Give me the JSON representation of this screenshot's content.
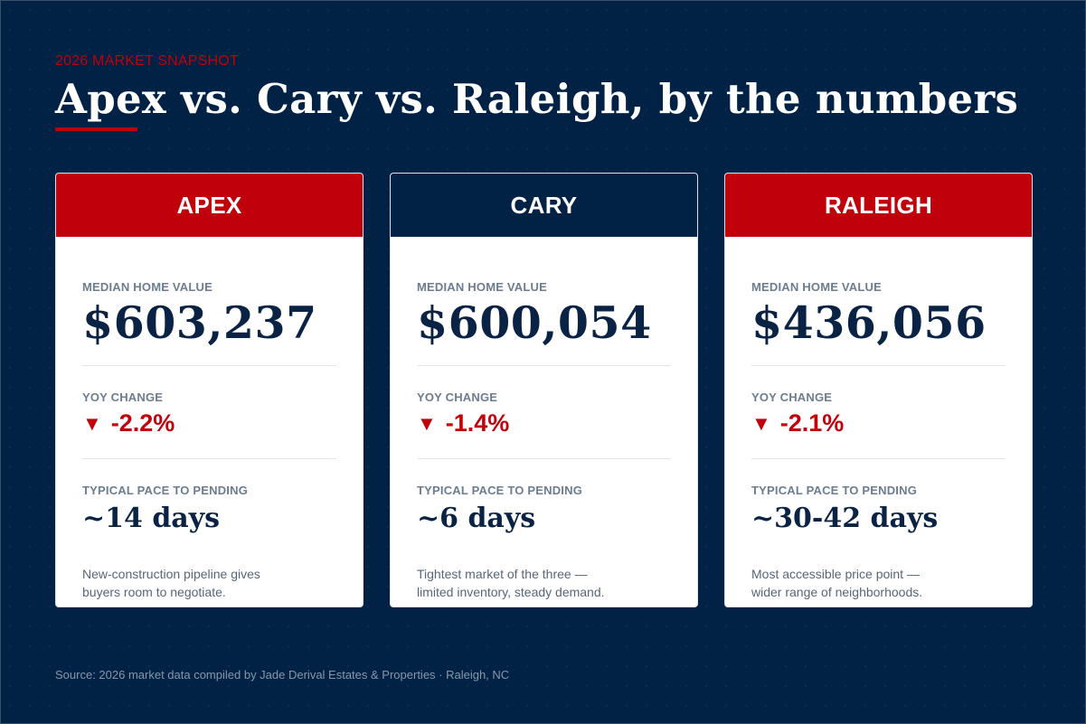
{
  "eyebrow": "2026 MARKET SNAPSHOT",
  "headline": "Apex vs. Cary vs. Raleigh, by the numbers",
  "labels": {
    "median": "MEDIAN HOME VALUE",
    "yoy": "YOY CHANGE",
    "pace": "TYPICAL PACE TO PENDING"
  },
  "colors": {
    "navy": "#012145",
    "red": "#c0000a",
    "white": "#ffffff"
  },
  "cards": [
    {
      "name": "APEX",
      "header_color": "#c0000a",
      "median_value": "$603,237",
      "yoy_icon": "down-triangle-icon",
      "yoy_arrow": "▼",
      "yoy_change": "-2.2%",
      "pace": "~14 days",
      "note": "New-construction pipeline gives buyers room to negotiate."
    },
    {
      "name": "CARY",
      "header_color": "#012145",
      "median_value": "$600,054",
      "yoy_icon": "down-triangle-icon",
      "yoy_arrow": "▼",
      "yoy_change": "-1.4%",
      "pace": "~6 days",
      "note": "Tightest market of the three — limited inventory, steady demand."
    },
    {
      "name": "RALEIGH",
      "header_color": "#c0000a",
      "median_value": "$436,056",
      "yoy_icon": "down-triangle-icon",
      "yoy_arrow": "▼",
      "yoy_change": "-2.1%",
      "pace": "~30-42 days",
      "note": "Most accessible price point — wider range of neighborhoods."
    }
  ],
  "source": "Source: 2026 market data compiled by Jade Derival Estates & Properties · Raleigh, NC"
}
